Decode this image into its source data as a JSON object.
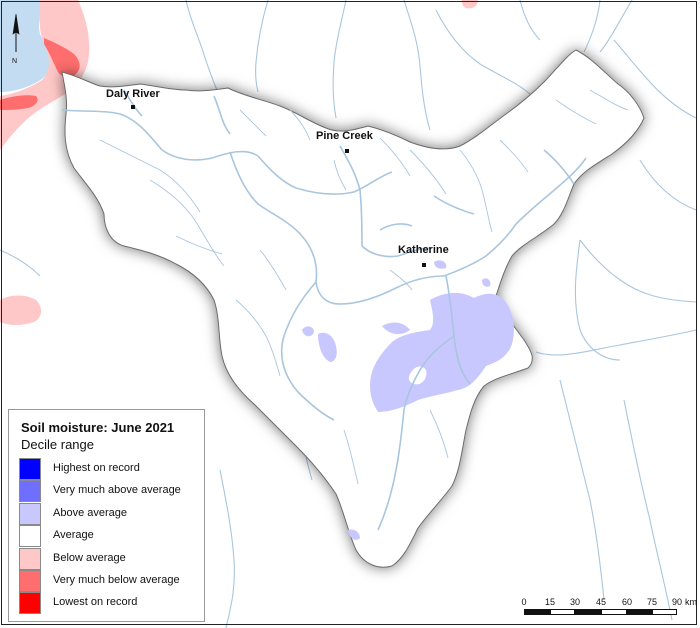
{
  "colors": {
    "water": "#c4dcf2",
    "river": "#a9c6de",
    "boundary_fill": "#ffffff",
    "border": "#6a6a6a"
  },
  "legend": {
    "title": "Soil moisture: June 2021",
    "subtitle": "Decile range",
    "items": [
      {
        "label": "Highest on record",
        "color": "#0000ff"
      },
      {
        "label": "Very much above average",
        "color": "#6e6eff"
      },
      {
        "label": "Above average",
        "color": "#c8c8ff"
      },
      {
        "label": "Average",
        "color": "#ffffff"
      },
      {
        "label": "Below average",
        "color": "#ffc8c8"
      },
      {
        "label": "Very much below average",
        "color": "#ff6e6e"
      },
      {
        "label": "Lowest on record",
        "color": "#ff0000"
      }
    ]
  },
  "places": [
    {
      "name": "Daly River"
    },
    {
      "name": "Pine Creek"
    },
    {
      "name": "Katherine"
    }
  ],
  "north_arrow": {
    "label": "N",
    "icon": "north-arrow-icon"
  },
  "scale": {
    "unit": "km",
    "ticks": [
      "0",
      "15",
      "30",
      "45",
      "60",
      "75",
      "90"
    ]
  }
}
